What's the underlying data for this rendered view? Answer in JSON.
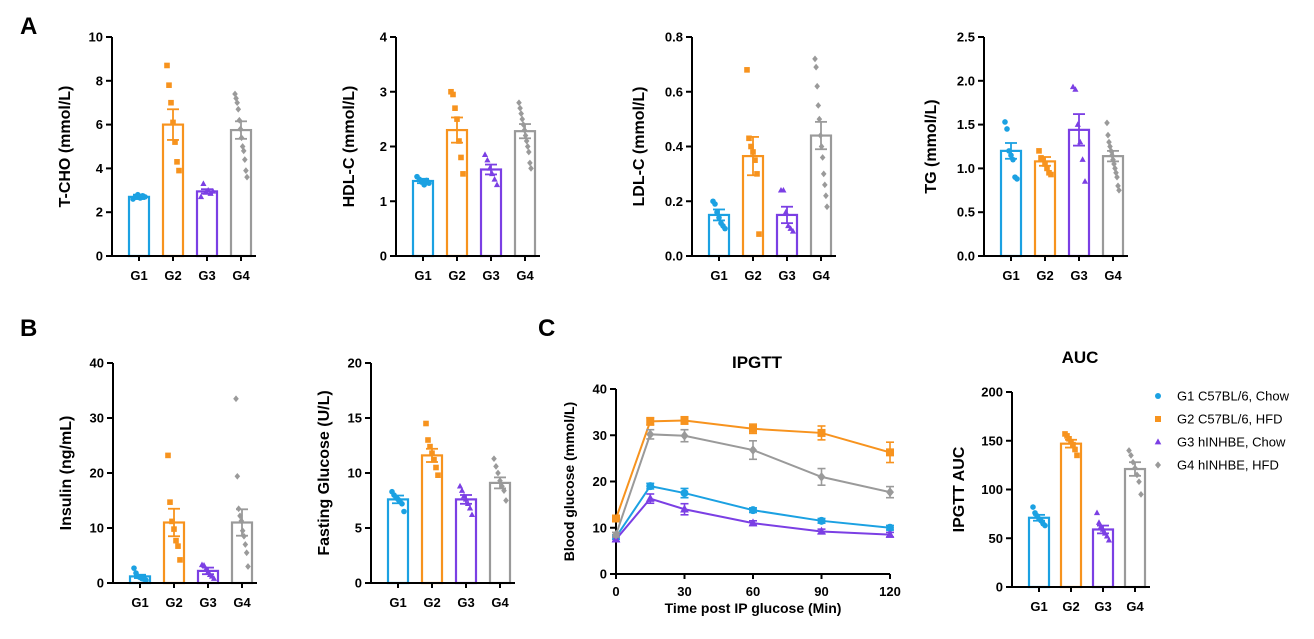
{
  "panels": {
    "A": "A",
    "B": "B",
    "C": "C"
  },
  "colors": {
    "G1": "#1ba1e2",
    "G2": "#f7931e",
    "G3": "#7b3fe4",
    "G4": "#9a9a9a"
  },
  "legend": [
    {
      "label": "G1 C57BL/6, Chow",
      "marker": "circle",
      "color": "#1ba1e2"
    },
    {
      "label": "G2 C57BL/6, HFD",
      "marker": "square",
      "color": "#f7931e"
    },
    {
      "label": "G3 hINHBE, Chow",
      "marker": "triangle",
      "color": "#7b3fe4"
    },
    {
      "label": "G4 hINHBE, HFD",
      "marker": "diamond",
      "color": "#9a9a9a"
    }
  ],
  "chart_data": [
    {
      "id": "tcho",
      "type": "bar",
      "title": "",
      "ylabel": "T-CHO (mmol/L)",
      "xlabel": "",
      "categories": [
        "G1",
        "G2",
        "G3",
        "G4"
      ],
      "ylim": [
        0,
        10
      ],
      "yticks": [
        0,
        2,
        4,
        6,
        8,
        10
      ],
      "values": [
        2.7,
        6.0,
        2.95,
        5.75
      ],
      "sem": [
        0.1,
        0.7,
        0.1,
        0.4
      ],
      "points": [
        [
          2.6,
          2.7,
          2.8,
          2.65,
          2.75,
          2.7
        ],
        [
          8.7,
          7.8,
          7.0,
          6.1,
          5.2,
          4.3,
          3.9
        ],
        [
          2.7,
          3.3,
          2.9,
          3.0,
          2.85,
          2.95
        ],
        [
          7.4,
          7.2,
          7.0,
          6.7,
          6.2,
          5.8,
          5.4,
          5.0,
          4.8,
          4.4,
          3.9,
          3.6
        ]
      ]
    },
    {
      "id": "hdlc",
      "type": "bar",
      "title": "",
      "ylabel": "HDL-C (mmol/L)",
      "xlabel": "",
      "categories": [
        "G1",
        "G2",
        "G3",
        "G4"
      ],
      "ylim": [
        0,
        4
      ],
      "yticks": [
        0,
        1,
        2,
        3,
        4
      ],
      "values": [
        1.37,
        2.3,
        1.58,
        2.28
      ],
      "sem": [
        0.04,
        0.23,
        0.09,
        0.13
      ],
      "points": [
        [
          1.45,
          1.4,
          1.35,
          1.3,
          1.38,
          1.33
        ],
        [
          3.0,
          2.95,
          2.7,
          2.5,
          2.1,
          1.8,
          1.5
        ],
        [
          1.85,
          1.75,
          1.6,
          1.5,
          1.4,
          1.3
        ],
        [
          2.8,
          2.7,
          2.6,
          2.5,
          2.4,
          2.3,
          2.2,
          2.1,
          2.0,
          1.9,
          1.7,
          1.6
        ]
      ]
    },
    {
      "id": "ldlc",
      "type": "bar",
      "title": "",
      "ylabel": "LDL-C (mmol/L)",
      "xlabel": "",
      "categories": [
        "G1",
        "G2",
        "G3",
        "G4"
      ],
      "ylim": [
        0,
        0.8
      ],
      "yticks": [
        0.0,
        0.2,
        0.4,
        0.6,
        0.8
      ],
      "values": [
        0.15,
        0.365,
        0.15,
        0.44
      ],
      "sem": [
        0.02,
        0.07,
        0.03,
        0.05
      ],
      "points": [
        [
          0.2,
          0.19,
          0.16,
          0.14,
          0.12,
          0.11,
          0.1
        ],
        [
          0.68,
          0.43,
          0.4,
          0.38,
          0.35,
          0.3,
          0.08
        ],
        [
          0.24,
          0.24,
          0.16,
          0.11,
          0.1,
          0.09
        ],
        [
          0.72,
          0.69,
          0.62,
          0.55,
          0.5,
          0.44,
          0.4,
          0.36,
          0.3,
          0.26,
          0.22,
          0.18
        ]
      ]
    },
    {
      "id": "tg",
      "type": "bar",
      "title": "",
      "ylabel": "TG (mmol/L)",
      "xlabel": "",
      "categories": [
        "G1",
        "G2",
        "G3",
        "G4"
      ],
      "ylim": [
        0,
        2.5
      ],
      "yticks": [
        0.0,
        0.5,
        1.0,
        1.5,
        2.0,
        2.5
      ],
      "values": [
        1.2,
        1.08,
        1.44,
        1.14
      ],
      "sem": [
        0.09,
        0.05,
        0.18,
        0.06
      ],
      "points": [
        [
          1.53,
          1.45,
          1.2,
          1.15,
          1.1,
          0.9,
          0.88
        ],
        [
          1.2,
          1.12,
          1.1,
          1.05,
          1.0,
          0.95,
          0.93
        ],
        [
          1.93,
          1.9,
          1.5,
          1.3,
          1.1,
          0.85
        ],
        [
          1.52,
          1.38,
          1.3,
          1.25,
          1.2,
          1.15,
          1.1,
          1.05,
          1.0,
          0.95,
          0.9,
          0.8,
          0.75
        ]
      ]
    },
    {
      "id": "insulin",
      "type": "bar",
      "title": "",
      "ylabel": "Insulin (ng/mL)",
      "xlabel": "",
      "categories": [
        "G1",
        "G2",
        "G3",
        "G4"
      ],
      "ylim": [
        0,
        40
      ],
      "yticks": [
        0,
        10,
        20,
        30,
        40
      ],
      "values": [
        1.2,
        11.0,
        2.2,
        11.0
      ],
      "sem": [
        0.3,
        2.5,
        0.6,
        2.4
      ],
      "points": [
        [
          2.7,
          1.8,
          1.2,
          1.0,
          0.8,
          0.7,
          0.5
        ],
        [
          23.2,
          14.7,
          11.2,
          9.8,
          7.7,
          6.7,
          4.2
        ],
        [
          3.3,
          3.2,
          2.5,
          2.0,
          1.5,
          1.2,
          0.8
        ],
        [
          33.5,
          19.4,
          13.5,
          12.2,
          11.3,
          9.5,
          8.5,
          7.0,
          5.5,
          3.0
        ]
      ]
    },
    {
      "id": "fglucose",
      "type": "bar",
      "title": "",
      "ylabel": "Fasting Glucose (U/L)",
      "xlabel": "",
      "categories": [
        "G1",
        "G2",
        "G3",
        "G4"
      ],
      "ylim": [
        0,
        20
      ],
      "yticks": [
        0,
        5,
        10,
        15,
        20
      ],
      "values": [
        7.6,
        11.6,
        7.6,
        9.1
      ],
      "sem": [
        0.35,
        0.6,
        0.4,
        0.5
      ],
      "points": [
        [
          8.3,
          8.0,
          7.8,
          7.6,
          7.4,
          7.2,
          6.5
        ],
        [
          14.5,
          13.0,
          12.4,
          11.8,
          11.2,
          10.5,
          9.8
        ],
        [
          8.8,
          8.4,
          7.9,
          7.6,
          7.2,
          6.8,
          6.2
        ],
        [
          11.3,
          10.6,
          10.0,
          9.3,
          8.8,
          8.4,
          7.5
        ]
      ]
    },
    {
      "id": "ipgtt",
      "type": "line",
      "title": "IPGTT",
      "ylabel": "Blood glucose (mmol/L)",
      "xlabel": "Time post IP glucose (Min)",
      "xlim": [
        0,
        120
      ],
      "xticks": [
        0,
        30,
        60,
        90,
        120
      ],
      "ylim": [
        0,
        40
      ],
      "yticks": [
        0,
        10,
        20,
        30,
        40
      ],
      "x": [
        0,
        15,
        30,
        60,
        90,
        120
      ],
      "series": [
        {
          "name": "G1 C57BL/6, Chow",
          "values": [
            8.0,
            19.0,
            17.5,
            13.8,
            11.5,
            10.0
          ],
          "sem": [
            0.5,
            0.6,
            1.0,
            0.5,
            0.5,
            0.5
          ]
        },
        {
          "name": "G2 C57BL/6, HFD",
          "values": [
            12.0,
            33.0,
            33.2,
            31.4,
            30.5,
            26.3
          ],
          "sem": [
            0.6,
            0.8,
            0.8,
            1.0,
            1.5,
            2.2
          ]
        },
        {
          "name": "G3 hINHBE, Chow",
          "values": [
            7.5,
            16.3,
            14.0,
            11.0,
            9.2,
            8.5
          ],
          "sem": [
            0.5,
            1.0,
            1.2,
            0.5,
            0.5,
            0.5
          ]
        },
        {
          "name": "G4 hINHBE, HFD",
          "values": [
            8.5,
            30.2,
            29.9,
            26.8,
            21.0,
            17.7
          ],
          "sem": [
            0.5,
            1.0,
            1.3,
            2.0,
            1.8,
            1.2
          ]
        }
      ]
    },
    {
      "id": "auc",
      "type": "bar",
      "title": "AUC",
      "ylabel": "IPGTT AUC",
      "xlabel": "",
      "categories": [
        "G1",
        "G2",
        "G3",
        "G4"
      ],
      "ylim": [
        0,
        200
      ],
      "yticks": [
        0,
        50,
        100,
        150,
        200
      ],
      "values": [
        71,
        147,
        59,
        121
      ],
      "sem": [
        3,
        4,
        4,
        7
      ],
      "points": [
        [
          82,
          76,
          73,
          70,
          68,
          65,
          63
        ],
        [
          157,
          155,
          152,
          149,
          146,
          141,
          135
        ],
        [
          76,
          66,
          62,
          59,
          55,
          52,
          48
        ],
        [
          140,
          135,
          128,
          122,
          115,
          108,
          95
        ]
      ]
    }
  ]
}
